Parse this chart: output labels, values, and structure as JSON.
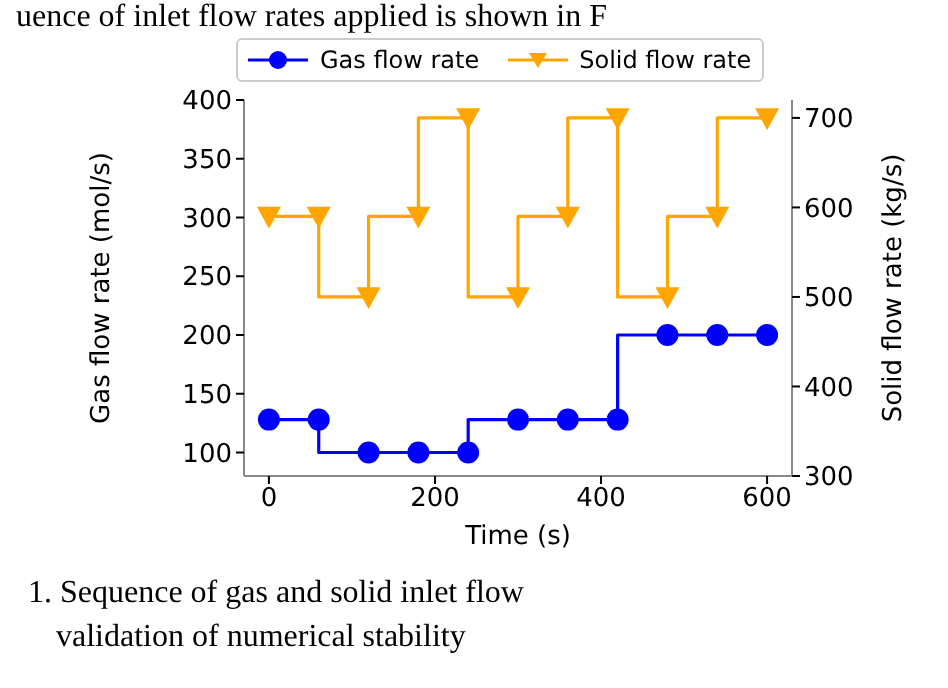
{
  "chart_data": {
    "type": "step",
    "xlabel": "Time (s)",
    "ylabel": "Gas flow rate (mol/s)",
    "y2label": "Solid flow rate (kg/s)",
    "x": [
      0,
      60,
      120,
      180,
      240,
      300,
      360,
      420,
      480,
      540,
      600
    ],
    "series": [
      {
        "name": "Gas flow rate",
        "color": "#0000ff",
        "marker": "circle",
        "values": [
          128,
          128,
          100,
          100,
          100,
          128,
          128,
          128,
          200,
          200,
          200
        ]
      },
      {
        "name": "Solid flow rate",
        "color": "#ffa500",
        "marker": "triangle",
        "axis": "y2",
        "values": [
          590,
          590,
          500,
          590,
          700,
          500,
          590,
          700,
          500,
          590,
          700
        ]
      }
    ],
    "xlim": [
      -30,
      630
    ],
    "xticks": [
      0,
      200,
      400,
      600
    ],
    "ylim": [
      80,
      400
    ],
    "yticks": [
      100,
      150,
      200,
      250,
      300,
      350,
      400
    ],
    "y2lim": [
      300,
      720
    ],
    "y2ticks": [
      300,
      400,
      500,
      600,
      700
    ],
    "grid": false,
    "legend": "top left",
    "line_style": "solid",
    "annotations": [
      "uence of inlet flow rates applied is shown in F",
      "1. Sequence of gas and solid inlet flow",
      "validation of numerical stability"
    ]
  }
}
